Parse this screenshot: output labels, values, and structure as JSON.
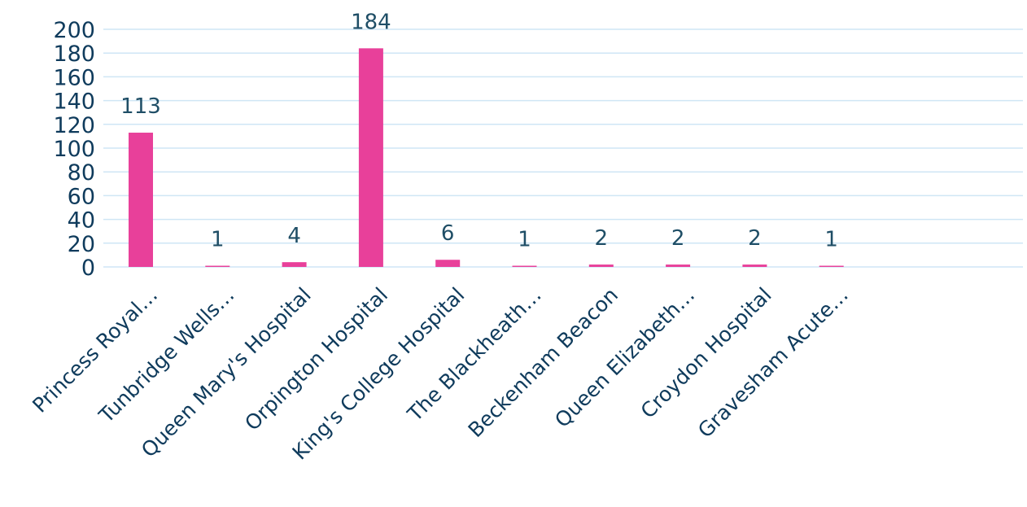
{
  "chart_data": {
    "type": "bar",
    "categories": [
      "Princess Royal…",
      "Tunbridge Wells…",
      "Queen Mary's Hospital",
      "Orpington Hospital",
      "King's College Hospital",
      "The Blackheath…",
      "Beckenham Beacon",
      "Queen Elizabeth…",
      "Croydon Hospital",
      "Gravesham Acute…"
    ],
    "values": [
      113,
      1,
      4,
      184,
      6,
      1,
      2,
      2,
      2,
      1
    ],
    "ylim": [
      0,
      200
    ],
    "yticks": [
      0,
      20,
      40,
      60,
      80,
      100,
      120,
      140,
      160,
      180,
      200
    ],
    "grid": true,
    "bar_color": "#e8409a",
    "grid_color": "#cfe6f5",
    "text_color": "#0f3b5c"
  }
}
